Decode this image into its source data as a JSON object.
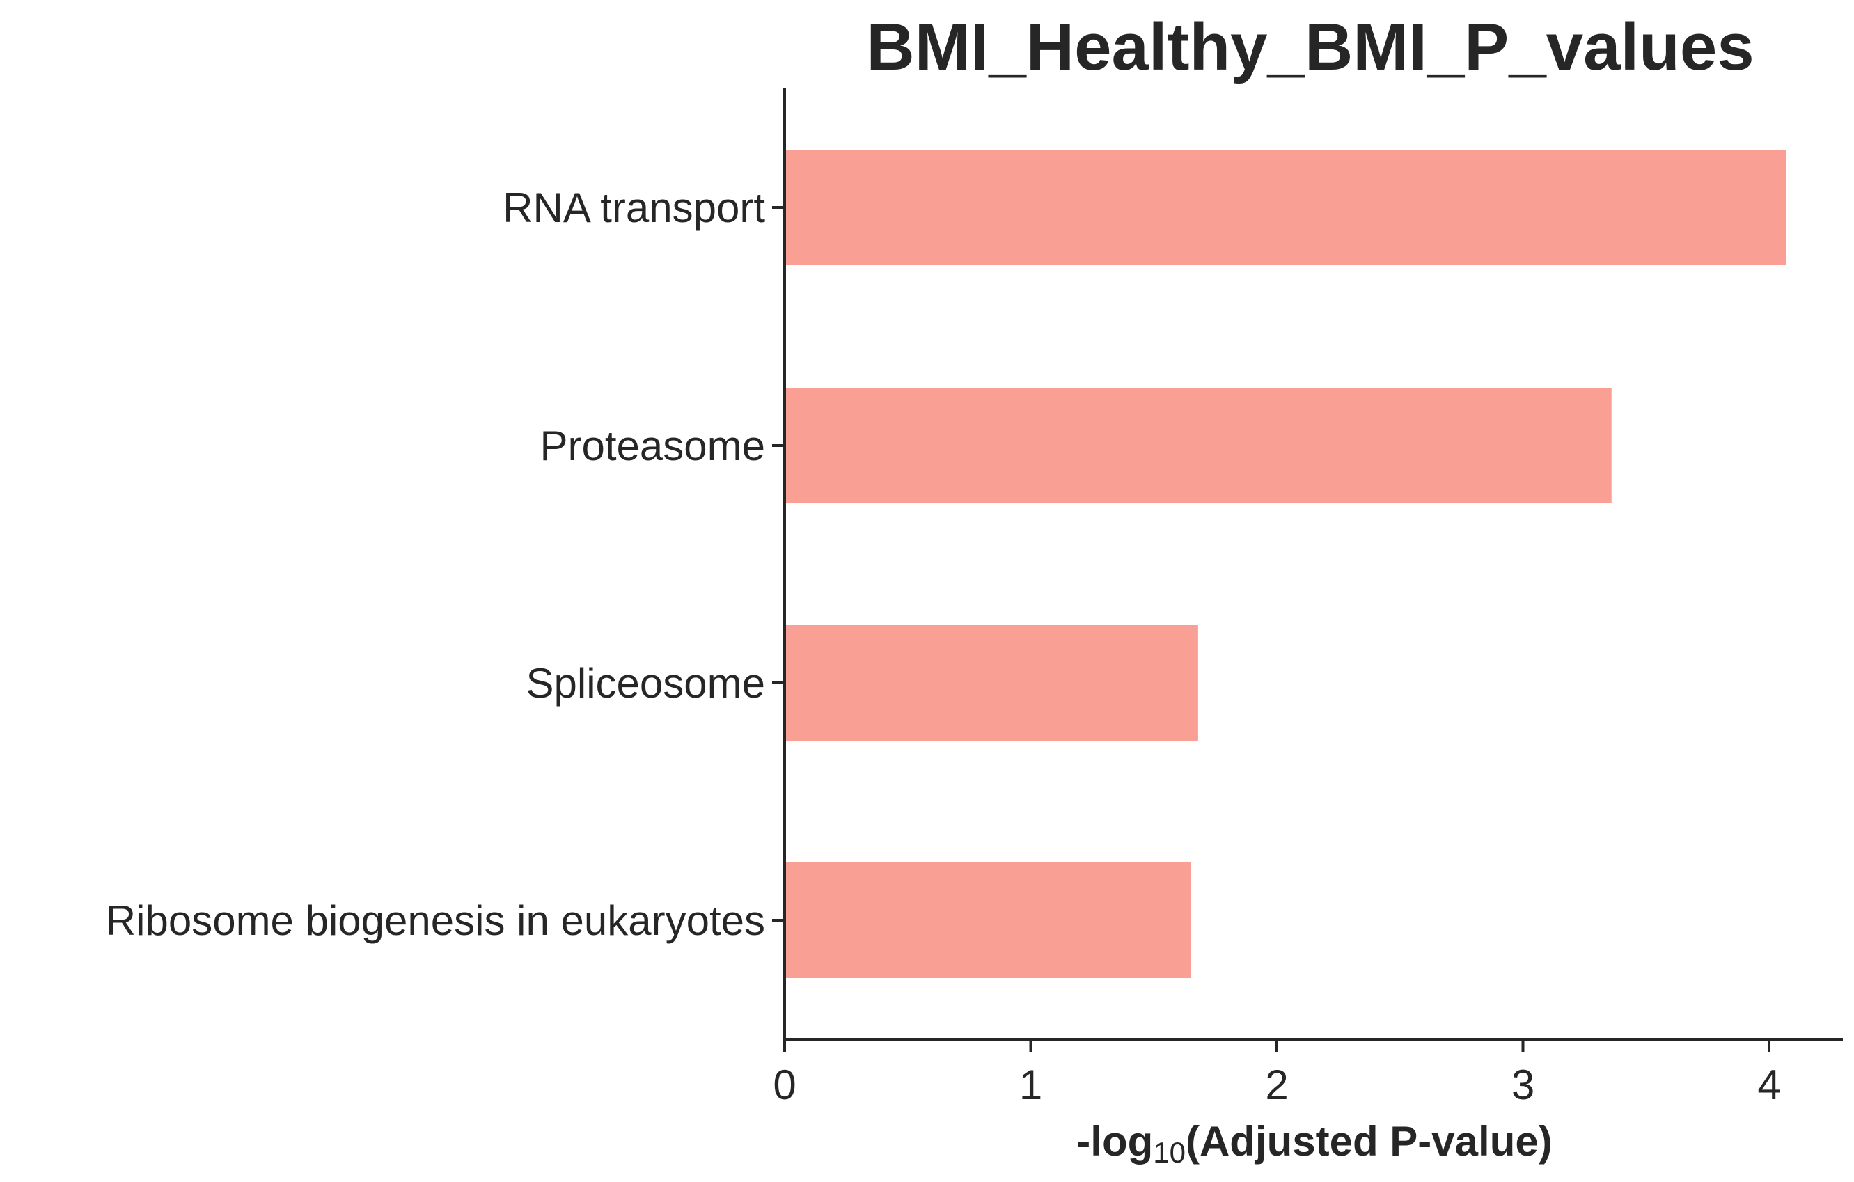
{
  "chart_data": {
    "type": "bar",
    "orientation": "horizontal",
    "title": "BMI_Healthy_BMI_P_values",
    "xlabel_prefix": "-log",
    "xlabel_subscript": "10",
    "xlabel_suffix": "(Adjusted P-value)",
    "ylabel": "",
    "categories": [
      "RNA transport",
      "Proteasome",
      "Spliceosome",
      "Ribosome biogenesis in eukaryotes"
    ],
    "values": [
      4.07,
      3.36,
      1.68,
      1.65
    ],
    "xlim": [
      0,
      4.28
    ],
    "xticks": [
      0,
      1,
      2,
      3,
      4
    ],
    "xtick_labels": [
      "0",
      "1",
      "2",
      "3",
      "4"
    ],
    "bar_color": "#fa9f94",
    "axis_color": "#262626",
    "grid": false,
    "legend": "none"
  }
}
